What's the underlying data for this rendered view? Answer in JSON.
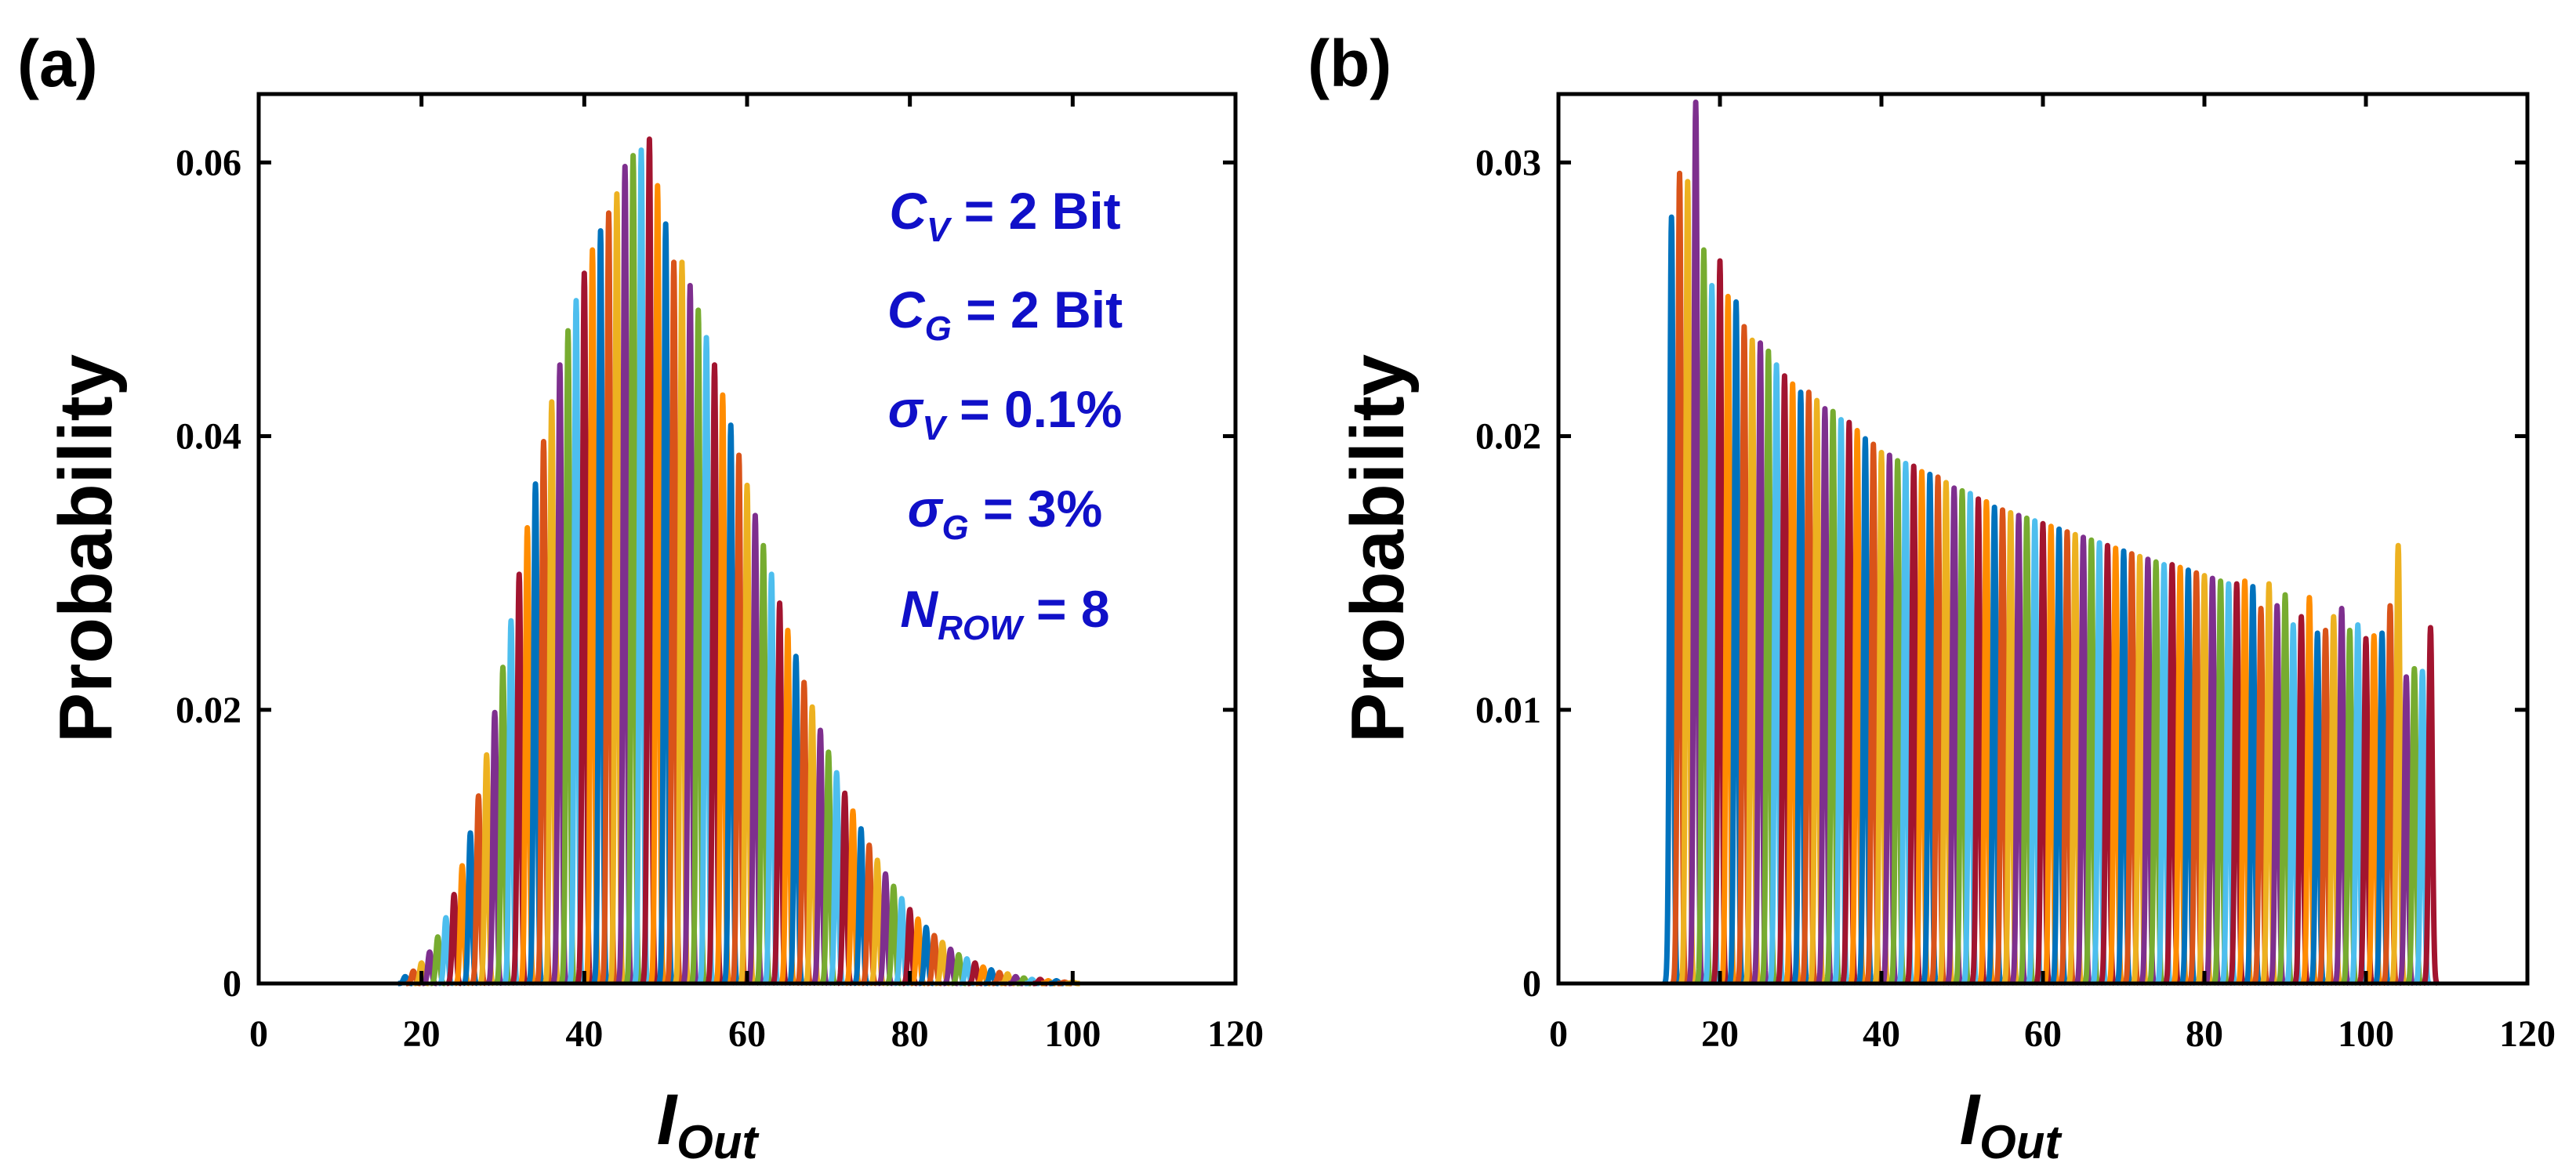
{
  "colors": {
    "series": [
      "#0072BD",
      "#D95319",
      "#EDB120",
      "#7E2F8E",
      "#77AC30",
      "#4DBEEE",
      "#A2142F",
      "#FF8C00"
    ],
    "axis": "#000000",
    "annotation": "#1010C8"
  },
  "chart_data": [
    {
      "panel_label": "(a)",
      "type": "line",
      "description_kind": "overlaid narrow gaussian peaks",
      "title": "",
      "xlabel": "I",
      "xlabel_sub": "Out",
      "ylabel": "Probability",
      "xlim": [
        0,
        120
      ],
      "ylim": [
        0,
        0.065
      ],
      "xticks": [
        0,
        20,
        40,
        60,
        80,
        100,
        120
      ],
      "xtick_labels": [
        "0",
        "20",
        "40",
        "60",
        "80",
        "100",
        "120"
      ],
      "yticks": [
        0,
        0.02,
        0.04,
        0.06
      ],
      "ytick_labels": [
        "0",
        "0.02",
        "0.04",
        "0.06"
      ],
      "baseline_range": [
        12,
        110
      ],
      "peak_width": 0.22,
      "peak_centers": [
        18,
        19,
        20,
        21,
        22,
        23,
        24,
        25,
        26,
        27,
        28,
        29,
        30,
        31,
        32,
        33,
        34,
        35,
        36,
        37,
        38,
        39,
        40,
        41,
        42,
        43,
        44,
        45,
        46,
        47,
        48,
        49,
        50,
        51,
        52,
        53,
        54,
        55,
        56,
        57,
        58,
        59,
        60,
        61,
        62,
        63,
        64,
        65,
        66,
        67,
        68,
        69,
        70,
        71,
        72,
        73,
        74,
        75,
        76,
        77,
        78,
        79,
        80,
        81,
        82,
        83,
        84,
        85,
        86,
        87,
        88,
        89,
        90,
        91,
        92,
        93,
        94,
        95,
        96,
        97,
        98,
        99,
        100
      ],
      "peak_heights": [
        0.0005,
        0.0009,
        0.0015,
        0.0023,
        0.0034,
        0.0048,
        0.0065,
        0.0086,
        0.011,
        0.0137,
        0.0167,
        0.0198,
        0.0231,
        0.0265,
        0.0299,
        0.0333,
        0.0365,
        0.0396,
        0.0425,
        0.0452,
        0.0477,
        0.0499,
        0.0519,
        0.0536,
        0.055,
        0.0563,
        0.0577,
        0.0597,
        0.0605,
        0.0609,
        0.0617,
        0.0583,
        0.0555,
        0.0527,
        0.0527,
        0.051,
        0.0492,
        0.0472,
        0.0452,
        0.043,
        0.0408,
        0.0386,
        0.0364,
        0.0342,
        0.032,
        0.0299,
        0.0278,
        0.0258,
        0.0239,
        0.022,
        0.0202,
        0.0185,
        0.0169,
        0.0154,
        0.0139,
        0.0126,
        0.0113,
        0.0101,
        0.009,
        0.008,
        0.0071,
        0.0062,
        0.0054,
        0.0047,
        0.0041,
        0.0035,
        0.003,
        0.0025,
        0.0021,
        0.0018,
        0.0015,
        0.0012,
        0.001,
        0.0008,
        0.0007,
        0.0005,
        0.0004,
        0.0003,
        0.0003,
        0.0002,
        0.0002,
        0.0001,
        0.0001
      ],
      "annotations": [
        {
          "sym": "C",
          "sub": "V",
          "text": " = 2 Bit"
        },
        {
          "sym": "C",
          "sub": "G",
          "text": " = 2 Bit"
        },
        {
          "sym": "σ",
          "sub": "V",
          "text": " = 0.1%"
        },
        {
          "sym": "σ",
          "sub": "G",
          "text": " = 3%"
        },
        {
          "sym": "N",
          "sub": "ROW",
          "text": " = 8"
        }
      ]
    },
    {
      "panel_label": "(b)",
      "type": "line",
      "description_kind": "overlaid narrow gaussian peaks",
      "title": "",
      "xlabel": "I",
      "xlabel_sub": "Out",
      "ylabel": "Probability",
      "xlim": [
        0,
        120
      ],
      "ylim": [
        0,
        0.0325
      ],
      "xticks": [
        0,
        20,
        40,
        60,
        80,
        100,
        120
      ],
      "xtick_labels": [
        "0",
        "20",
        "40",
        "60",
        "80",
        "100",
        "120"
      ],
      "yticks": [
        0,
        0.01,
        0.02,
        0.03
      ],
      "ytick_labels": [
        "0",
        "0.01",
        "0.02",
        "0.03"
      ],
      "baseline_range": [
        14,
        110
      ],
      "peak_width": 0.22,
      "peak_centers": [
        14,
        15,
        16,
        17,
        18,
        19,
        20,
        21,
        22,
        23,
        24,
        25,
        26,
        27,
        28,
        29,
        30,
        31,
        32,
        33,
        34,
        35,
        36,
        37,
        38,
        39,
        40,
        41,
        42,
        43,
        44,
        45,
        46,
        47,
        48,
        49,
        50,
        51,
        52,
        53,
        54,
        55,
        56,
        57,
        58,
        59,
        60,
        61,
        62,
        63,
        64,
        65,
        66,
        67,
        68,
        69,
        70,
        71,
        72,
        73,
        74,
        75,
        76,
        77,
        78,
        79,
        80,
        81,
        82,
        83,
        84,
        85,
        86,
        87,
        88,
        89,
        90,
        91,
        92,
        93,
        94,
        95,
        96,
        97,
        98,
        99,
        100,
        101,
        102,
        103,
        104,
        105,
        106,
        107,
        108
      ],
      "peak_heights": [
        0.028,
        0.0296,
        0.0293,
        0.0322,
        0.0268,
        0.0255,
        0.0264,
        0.0251,
        0.0249,
        0.024,
        0.0235,
        0.0234,
        0.0231,
        0.0226,
        0.0222,
        0.0219,
        0.0216,
        0.0216,
        0.0213,
        0.021,
        0.0209,
        0.0206,
        0.0205,
        0.0202,
        0.0199,
        0.0197,
        0.0194,
        0.0193,
        0.0191,
        0.019,
        0.0189,
        0.0187,
        0.0186,
        0.0185,
        0.0183,
        0.0181,
        0.018,
        0.0179,
        0.0177,
        0.0176,
        0.0174,
        0.0173,
        0.0172,
        0.0171,
        0.017,
        0.0169,
        0.0168,
        0.0167,
        0.0166,
        0.0165,
        0.0164,
        0.0163,
        0.0162,
        0.0161,
        0.016,
        0.0159,
        0.0158,
        0.0157,
        0.0156,
        0.0155,
        0.0154,
        0.0153,
        0.0153,
        0.0152,
        0.0151,
        0.015,
        0.0149,
        0.0148,
        0.0147,
        0.0146,
        0.0146,
        0.0147,
        0.0145,
        0.0137,
        0.0146,
        0.0138,
        0.0142,
        0.0131,
        0.0134,
        0.0141,
        0.0128,
        0.0129,
        0.0134,
        0.0137,
        0.0129,
        0.0131,
        0.0126,
        0.0127,
        0.0128,
        0.0138,
        0.016,
        0.0112,
        0.0115,
        0.0114,
        0.013
      ]
    }
  ]
}
